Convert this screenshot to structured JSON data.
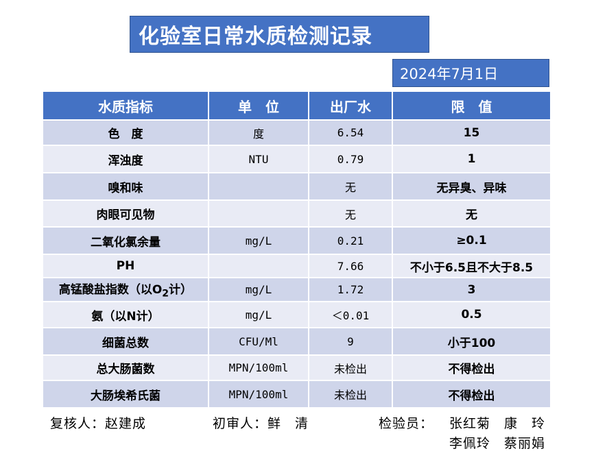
{
  "title": "化验室日常水质检测记录",
  "date": "2024年7月1日",
  "table": {
    "headers": [
      "水质指标",
      "单　位",
      "出厂水",
      "限　值"
    ],
    "rows": [
      {
        "item": "色　度",
        "unit": "度",
        "value": "6.54",
        "limit": "15"
      },
      {
        "item": "浑浊度",
        "unit": "NTU",
        "value": "0.79",
        "limit": "1"
      },
      {
        "item": "嗅和味",
        "unit": "",
        "value": "无",
        "limit": "无异臭、异味"
      },
      {
        "item": "肉眼可见物",
        "unit": "",
        "value": "无",
        "limit": "无"
      },
      {
        "item": "二氧化氯余量",
        "unit": "mg/L",
        "value": "0.21",
        "limit": "≥0.1"
      },
      {
        "item": "PH",
        "unit": "",
        "value": "7.66",
        "limit": "不小于6.5且不大于8.5"
      },
      {
        "item": "高锰酸盐指数（以O2计）",
        "unit": "mg/L",
        "value": "1.72",
        "limit": "3"
      },
      {
        "item": "氨（以N计）",
        "unit": "mg/L",
        "value": "＜0.01",
        "limit": "0.5"
      },
      {
        "item": "细菌总数",
        "unit": "CFU/Ml",
        "value": "9",
        "limit": "小于100"
      },
      {
        "item": "总大肠菌数",
        "unit": "MPN/100ml",
        "value": "未检出",
        "limit": "不得检出"
      },
      {
        "item": "大肠埃希氏菌",
        "unit": "MPN/100ml",
        "value": "未检出",
        "limit": "不得检出"
      }
    ]
  },
  "footer": {
    "reviewer": "复核人：赵建成",
    "first_reviewer": "初审人：鲜　清",
    "inspector_label": "检验员：",
    "inspectors_line1": "张红菊　康　玲",
    "inspectors_line2": "李佩玲　蔡丽娟"
  },
  "colors": {
    "header_blue": "#4472c4",
    "row_dark": "#cfd5ea",
    "row_light": "#e9ebf5"
  }
}
